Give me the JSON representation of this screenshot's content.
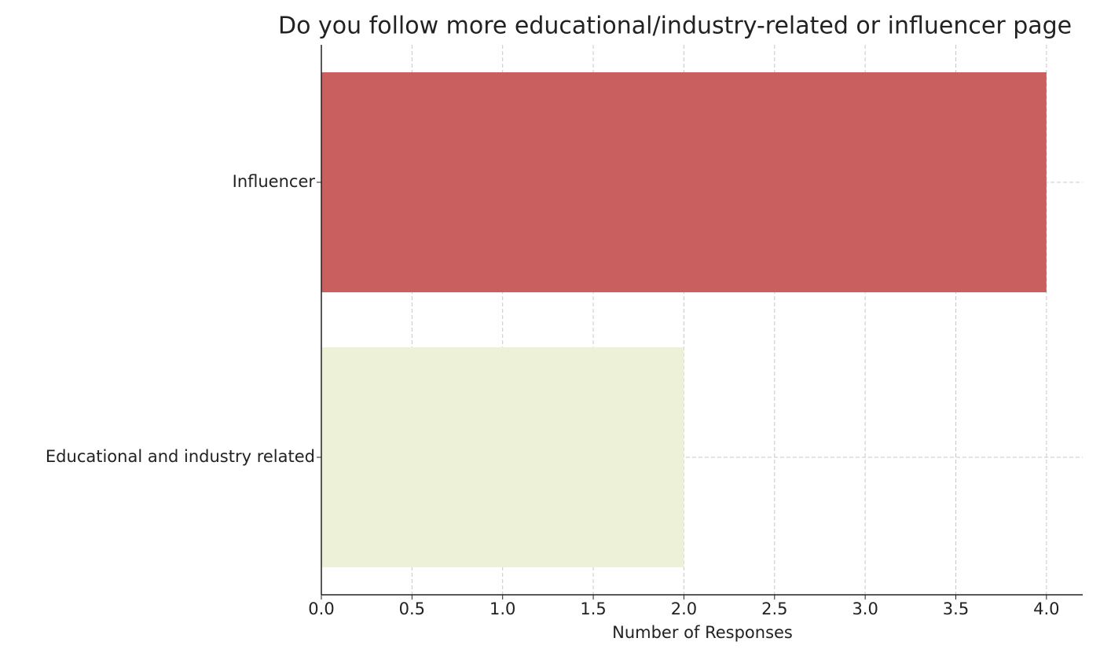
{
  "chart_data": {
    "type": "barh",
    "title": "Do you follow more educational/industry-related or influencer page",
    "x_label": "Number of Responses",
    "categories": [
      "Educational and industry related",
      "Influencer"
    ],
    "values": [
      2,
      4
    ],
    "colors": [
      "#edf1d8",
      "#c95f5f"
    ],
    "xlim": [
      0,
      4.2
    ],
    "xticks": [
      {
        "value": 0,
        "label": "0.0"
      },
      0.5,
      {
        "value": 1,
        "label": "1.0"
      },
      1.5,
      {
        "value": 2,
        "label": "2.0"
      },
      2.5,
      {
        "value": 3,
        "label": "3.0"
      },
      3.5,
      {
        "value": 4,
        "label": "4.0"
      }
    ],
    "grid": true
  }
}
